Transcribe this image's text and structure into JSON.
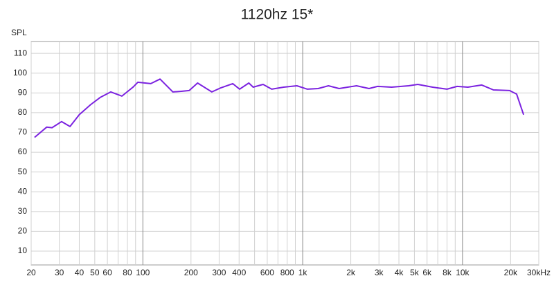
{
  "chart_data": {
    "type": "line",
    "title": "1120hz 15*",
    "y_label": "SPL",
    "xscale": "log",
    "grid": true,
    "xlim": [
      20,
      30000
    ],
    "ylim": [
      3,
      116
    ],
    "yticks": [
      10,
      20,
      30,
      40,
      50,
      60,
      70,
      80,
      90,
      100,
      110
    ],
    "xticks": [
      20,
      30,
      40,
      50,
      60,
      80,
      100,
      200,
      300,
      400,
      600,
      800,
      {
        "value": 1000,
        "label": "1k"
      },
      {
        "value": 2000,
        "label": "2k"
      },
      {
        "value": 3000,
        "label": "3k"
      },
      {
        "value": 4000,
        "label": "4k"
      },
      {
        "value": 5000,
        "label": "5k"
      },
      {
        "value": 6000,
        "label": "6k"
      },
      {
        "value": 8000,
        "label": "8k"
      },
      {
        "value": 10000,
        "label": "10k"
      },
      {
        "value": 20000,
        "label": "20k"
      },
      {
        "value": 30000,
        "label": "30kHz"
      }
    ],
    "x_minor_grid": [
      70,
      90,
      500,
      700,
      900,
      7000,
      9000
    ],
    "x": [
      21,
      25,
      27,
      31,
      35,
      40,
      47,
      54,
      63,
      74,
      87,
      93,
      112,
      128,
      154,
      174,
      195,
      220,
      270,
      308,
      365,
      403,
      460,
      490,
      565,
      640,
      760,
      920,
      1070,
      1250,
      1450,
      1690,
      2170,
      2600,
      2940,
      3600,
      4600,
      5250,
      6500,
      8000,
      9250,
      10800,
      13200,
      15600,
      19700,
      21800,
      24100
    ],
    "series": [
      {
        "name": "SPL",
        "color": "#7b22e0",
        "values": [
          67.5,
          72.7,
          72.4,
          75.5,
          73,
          79,
          84,
          87.7,
          90.5,
          88.4,
          93,
          95.4,
          94.7,
          97,
          90.5,
          90.8,
          91.2,
          95,
          90.5,
          92.6,
          94.7,
          91.9,
          95,
          92.9,
          94.3,
          91.9,
          92.9,
          93.6,
          91.9,
          92.2,
          93.6,
          92.2,
          93.6,
          92.2,
          93.3,
          92.9,
          93.6,
          94.3,
          92.9,
          91.9,
          93.3,
          92.9,
          94,
          91.5,
          91.2,
          89.4,
          79
        ]
      }
    ]
  }
}
